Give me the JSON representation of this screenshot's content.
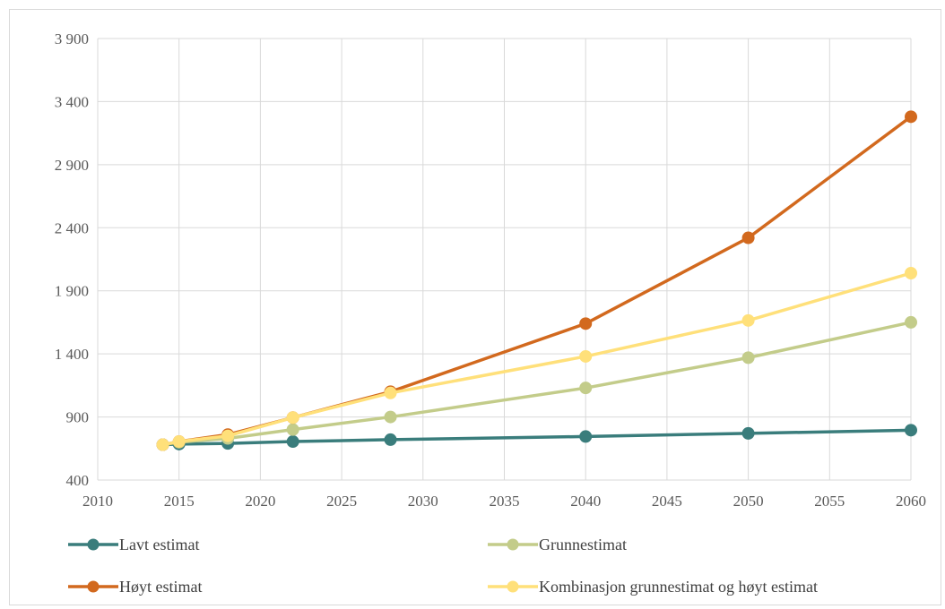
{
  "chart_data": {
    "type": "line",
    "title": "",
    "xlabel": "",
    "ylabel": "",
    "xlim": [
      2010,
      2060
    ],
    "ylim": [
      400,
      3900
    ],
    "x_ticks": [
      2010,
      2015,
      2020,
      2025,
      2030,
      2035,
      2040,
      2045,
      2050,
      2055,
      2060
    ],
    "x_tick_labels": [
      "2010",
      "2015",
      "2020",
      "2025",
      "2030",
      "2035",
      "2040",
      "2045",
      "2050",
      "2055",
      "2060"
    ],
    "y_ticks": [
      400,
      900,
      1400,
      1900,
      2400,
      2900,
      3400,
      3900
    ],
    "y_tick_labels": [
      "400",
      "900",
      "1 400",
      "1 900",
      "2 400",
      "2 900",
      "3 400",
      "3 900"
    ],
    "grid": true,
    "legend_position": "bottom",
    "series": [
      {
        "name": "Lavt estimat",
        "color": "#3a7d7c",
        "points": [
          [
            2014,
            680
          ],
          [
            2015,
            685
          ],
          [
            2018,
            690
          ],
          [
            2022,
            705
          ],
          [
            2028,
            720
          ],
          [
            2040,
            745
          ],
          [
            2050,
            770
          ],
          [
            2060,
            795
          ]
        ]
      },
      {
        "name": "Grunnestimat",
        "color": "#c3cc8a",
        "points": [
          [
            2014,
            680
          ],
          [
            2015,
            700
          ],
          [
            2018,
            730
          ],
          [
            2022,
            800
          ],
          [
            2028,
            900
          ],
          [
            2040,
            1130
          ],
          [
            2050,
            1370
          ],
          [
            2060,
            1650
          ]
        ]
      },
      {
        "name": "Høyt estimat",
        "color": "#d2691e",
        "points": [
          [
            2014,
            680
          ],
          [
            2015,
            705
          ],
          [
            2018,
            760
          ],
          [
            2022,
            895
          ],
          [
            2028,
            1100
          ],
          [
            2040,
            1640
          ],
          [
            2050,
            2320
          ],
          [
            2060,
            3280
          ]
        ]
      },
      {
        "name": "Kombinasjon grunnestimat og høyt estimat",
        "color": "#ffe07a",
        "points": [
          [
            2014,
            680
          ],
          [
            2015,
            705
          ],
          [
            2018,
            750
          ],
          [
            2022,
            895
          ],
          [
            2028,
            1090
          ],
          [
            2040,
            1380
          ],
          [
            2050,
            1665
          ],
          [
            2060,
            2040
          ]
        ]
      }
    ]
  }
}
